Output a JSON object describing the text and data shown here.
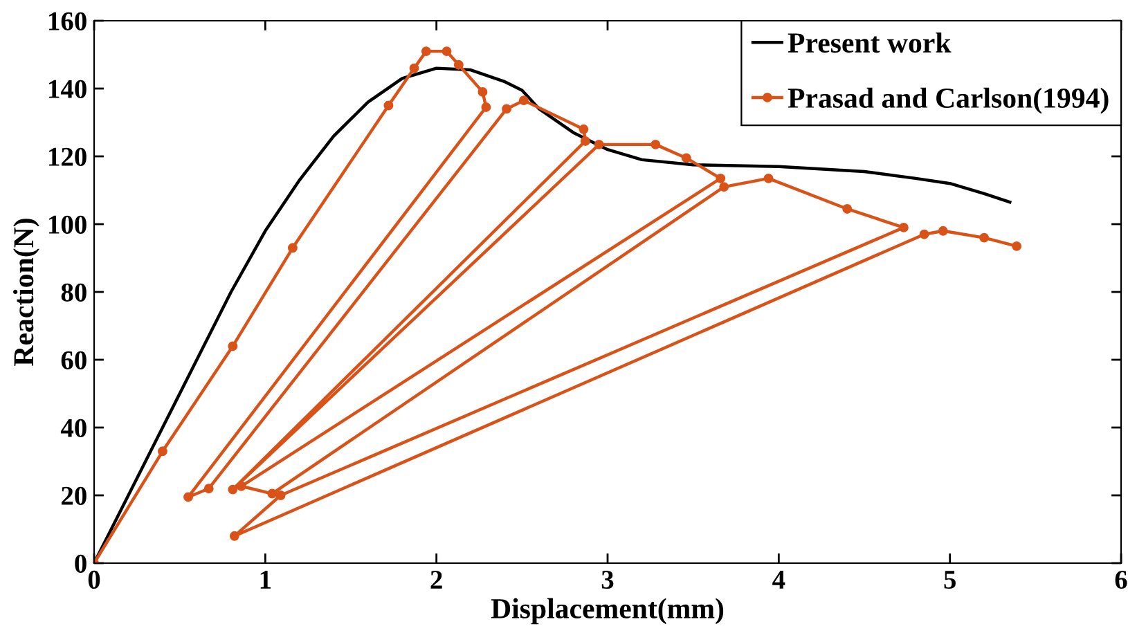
{
  "chart_data": {
    "type": "line",
    "xlabel": "Displacement(mm)",
    "ylabel": "Reaction(N)",
    "xlim": [
      0,
      6
    ],
    "xticks": [
      0,
      1,
      2,
      3,
      4,
      5,
      6
    ],
    "ylim": [
      0,
      160
    ],
    "yticks": [
      0,
      20,
      40,
      60,
      80,
      100,
      120,
      140,
      160
    ],
    "grid": false,
    "legend": "top right",
    "series": [
      {
        "name": "Present work",
        "color": "#000000",
        "marker": "none",
        "x": [
          0,
          0.2,
          0.4,
          0.6,
          0.8,
          1.0,
          1.2,
          1.4,
          1.6,
          1.8,
          2.0,
          2.2,
          2.4,
          2.5,
          2.6,
          2.8,
          3.0,
          3.2,
          3.5,
          4.0,
          4.5,
          4.8,
          5.0,
          5.2,
          5.35
        ],
        "values": [
          0,
          20,
          40,
          60,
          80,
          98,
          113,
          126,
          136,
          143,
          146,
          145.5,
          142,
          139.5,
          134,
          127,
          122,
          119,
          117.5,
          117,
          115.5,
          113.5,
          112,
          109,
          106.5
        ]
      },
      {
        "name": "Prasad and Carlson(1994)",
        "color": "#d95319",
        "marker": "circle",
        "x": [
          0,
          0.4,
          0.81,
          1.16,
          1.72,
          1.87,
          1.94,
          2.06,
          2.13,
          2.27,
          2.29,
          0.55,
          0.67,
          2.41,
          2.51,
          2.86,
          2.87,
          0.81,
          2.95,
          3.28,
          3.46,
          3.66,
          0.86,
          1.04,
          3.68,
          3.94,
          4.4,
          4.73,
          1.09,
          0.82,
          4.85,
          4.96,
          5.2,
          5.39
        ],
        "values": [
          0,
          33,
          64,
          93,
          135,
          146,
          151,
          151,
          147,
          139,
          134.5,
          19.5,
          22,
          134,
          136.5,
          128,
          124.5,
          21.7,
          123.5,
          123.5,
          119.5,
          113.5,
          22.7,
          20.5,
          111,
          113.5,
          104.5,
          99,
          20,
          8,
          97,
          98,
          96,
          93.5
        ]
      }
    ]
  }
}
